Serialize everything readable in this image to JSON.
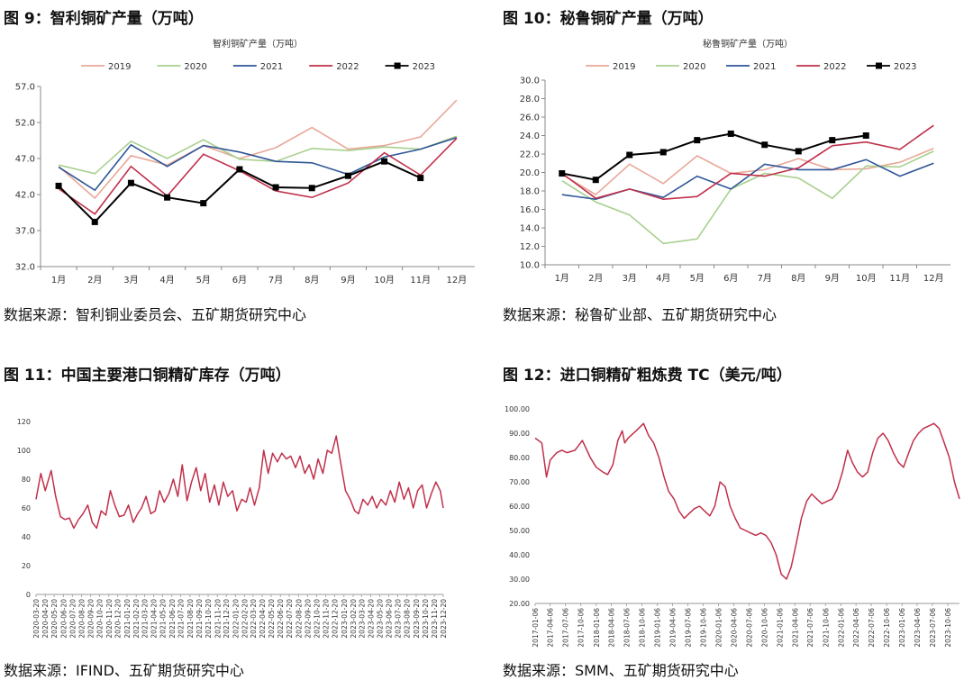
{
  "charts": [
    {
      "panel_title": "图 9：智利铜矿产量（万吨）",
      "source": "数据来源：智利铜业委员会、五矿期货研究中心",
      "chart_data": {
        "type": "line",
        "title": "智利铜矿产量（万吨）",
        "categories": [
          "1月",
          "2月",
          "3月",
          "4月",
          "5月",
          "6月",
          "7月",
          "8月",
          "9月",
          "10月",
          "11月",
          "12月"
        ],
        "ylim": [
          32,
          57
        ],
        "yticks": [
          "57.0",
          "52.0",
          "47.0",
          "42.0",
          "37.0",
          "32.0"
        ],
        "legend_position": "top",
        "series": [
          {
            "name": "2019",
            "color": "#e8a898",
            "values": [
              45.9,
              41.5,
              47.4,
              46.1,
              48.8,
              47.0,
              48.5,
              51.3,
              48.3,
              48.8,
              50.0,
              55.1
            ]
          },
          {
            "name": "2020",
            "color": "#a8d08d",
            "values": [
              46.1,
              44.9,
              49.4,
              47.0,
              49.6,
              46.9,
              46.6,
              48.4,
              48.1,
              48.6,
              48.3,
              50.1
            ]
          },
          {
            "name": "2021",
            "color": "#2f5597",
            "values": [
              45.8,
              42.6,
              48.9,
              45.9,
              48.8,
              47.9,
              46.6,
              46.4,
              44.8,
              47.2,
              48.3,
              49.9
            ]
          },
          {
            "name": "2022",
            "color": "#c0304a",
            "values": [
              42.8,
              39.3,
              45.9,
              41.8,
              47.6,
              45.3,
              42.5,
              41.6,
              43.6,
              47.8,
              44.7,
              49.8
            ]
          },
          {
            "name": "2023",
            "color": "#000000",
            "marker": true,
            "values": [
              43.2,
              38.2,
              43.6,
              41.6,
              40.8,
              45.5,
              43.0,
              42.9,
              44.6,
              46.6,
              44.3,
              null
            ]
          }
        ]
      }
    },
    {
      "panel_title": "图 10：秘鲁铜矿产量（万吨）",
      "source": "数据来源：秘鲁矿业部、五矿期货研究中心",
      "chart_data": {
        "type": "line",
        "title": "秘鲁铜矿产量（万吨）",
        "categories": [
          "1月",
          "2月",
          "3月",
          "4月",
          "5月",
          "6月",
          "7月",
          "8月",
          "9月",
          "10月",
          "11月",
          "12月"
        ],
        "ylim": [
          10,
          30
        ],
        "yticks": [
          "30.0",
          "28.0",
          "26.0",
          "24.0",
          "22.0",
          "20.0",
          "18.0",
          "16.0",
          "14.0",
          "12.0",
          "10.0"
        ],
        "legend_position": "top",
        "series": [
          {
            "name": "2019",
            "color": "#e8a898",
            "values": [
              19.8,
              17.6,
              20.9,
              18.8,
              21.8,
              19.9,
              20.3,
              21.5,
              20.3,
              20.4,
              21.1,
              22.6
            ]
          },
          {
            "name": "2020",
            "color": "#a8d08d",
            "values": [
              19.1,
              16.8,
              15.4,
              12.3,
              12.8,
              18.2,
              19.9,
              19.4,
              17.2,
              20.7,
              20.6,
              22.3
            ]
          },
          {
            "name": "2021",
            "color": "#2f5597",
            "values": [
              17.6,
              17.1,
              18.2,
              17.3,
              19.6,
              18.2,
              20.9,
              20.3,
              20.3,
              21.4,
              19.6,
              21.0
            ]
          },
          {
            "name": "2022",
            "color": "#c0304a",
            "values": [
              19.9,
              17.2,
              18.2,
              17.1,
              17.4,
              19.9,
              19.6,
              20.5,
              22.9,
              23.3,
              22.5,
              25.1
            ]
          },
          {
            "name": "2023",
            "color": "#000000",
            "marker": true,
            "values": [
              19.9,
              19.2,
              21.9,
              22.2,
              23.5,
              24.2,
              23.0,
              22.3,
              23.5,
              24.0,
              null,
              null
            ]
          }
        ]
      }
    },
    {
      "panel_title": "图 11：中国主要港口铜精矿库存（万吨）",
      "source": "数据来源：IFIND、五矿期货研究中心",
      "chart_data": {
        "type": "line",
        "ylim": [
          0,
          120
        ],
        "yticks": [
          "120",
          "100",
          "80",
          "60",
          "40",
          "20",
          "0"
        ],
        "color": "#c0304a",
        "xticks": [
          "2020-03-20",
          "2020-04-20",
          "2020-05-20",
          "2020-06-20",
          "2020-07-20",
          "2020-08-20",
          "2020-09-20",
          "2020-10-20",
          "2020-11-20",
          "2020-12-20",
          "2021-01-20",
          "2021-02-20",
          "2021-03-20",
          "2021-04-20",
          "2021-05-20",
          "2021-06-20",
          "2021-07-20",
          "2021-08-20",
          "2021-09-20",
          "2021-10-20",
          "2021-11-20",
          "2021-12-20",
          "2022-01-20",
          "2022-02-20",
          "2022-03-20",
          "2022-04-20",
          "2022-05-20",
          "2022-06-20",
          "2022-07-20",
          "2022-08-20",
          "2022-09-20",
          "2022-10-20",
          "2022-11-20",
          "2022-12-20",
          "2023-01-20",
          "2023-02-20",
          "2023-03-20",
          "2023-04-20",
          "2023-05-20",
          "2023-06-20",
          "2023-07-20",
          "2023-08-20",
          "2023-09-20",
          "2023-10-20",
          "2023-11-20",
          "2023-12-20"
        ],
        "x": [
          "2020-03-20",
          "2020-04-05",
          "2020-04-20",
          "2020-05-10",
          "2020-05-25",
          "2020-06-10",
          "2020-06-25",
          "2020-07-10",
          "2020-07-25",
          "2020-08-10",
          "2020-08-25",
          "2020-09-10",
          "2020-09-25",
          "2020-10-10",
          "2020-10-25",
          "2020-11-10",
          "2020-11-25",
          "2020-12-10",
          "2020-12-25",
          "2021-01-10",
          "2021-01-25",
          "2021-02-10",
          "2021-02-25",
          "2021-03-10",
          "2021-03-25",
          "2021-04-10",
          "2021-04-25",
          "2021-05-10",
          "2021-05-25",
          "2021-06-10",
          "2021-06-25",
          "2021-07-10",
          "2021-07-25",
          "2021-08-10",
          "2021-08-25",
          "2021-09-10",
          "2021-09-25",
          "2021-10-10",
          "2021-10-25",
          "2021-11-10",
          "2021-11-25",
          "2021-12-10",
          "2021-12-25",
          "2022-01-10",
          "2022-01-25",
          "2022-02-10",
          "2022-02-25",
          "2022-03-10",
          "2022-03-25",
          "2022-04-10",
          "2022-04-25",
          "2022-05-10",
          "2022-05-25",
          "2022-06-10",
          "2022-06-25",
          "2022-07-10",
          "2022-07-25",
          "2022-08-10",
          "2022-08-25",
          "2022-09-10",
          "2022-09-25",
          "2022-10-10",
          "2022-10-25",
          "2022-11-10",
          "2022-11-25",
          "2022-12-10",
          "2022-12-25",
          "2023-01-10",
          "2023-01-25",
          "2023-02-10",
          "2023-02-25",
          "2023-03-10",
          "2023-03-25",
          "2023-04-10",
          "2023-04-25",
          "2023-05-10",
          "2023-05-25",
          "2023-06-10",
          "2023-06-25",
          "2023-07-10",
          "2023-07-25",
          "2023-08-10",
          "2023-08-25",
          "2023-09-10",
          "2023-09-25",
          "2023-10-10",
          "2023-10-25",
          "2023-11-10",
          "2023-11-25",
          "2023-12-10",
          "2023-12-20"
        ],
        "values": [
          66,
          84,
          72,
          86,
          68,
          54,
          52,
          53,
          46,
          52,
          56,
          62,
          50,
          46,
          58,
          55,
          72,
          62,
          54,
          55,
          62,
          50,
          56,
          60,
          68,
          56,
          58,
          72,
          64,
          70,
          80,
          68,
          90,
          65,
          78,
          88,
          72,
          84,
          64,
          76,
          62,
          78,
          68,
          72,
          58,
          66,
          64,
          74,
          62,
          74,
          100,
          84,
          98,
          92,
          98,
          94,
          96,
          88,
          96,
          84,
          90,
          80,
          94,
          84,
          100,
          98,
          110,
          90,
          72,
          66,
          58,
          56,
          66,
          62,
          68,
          60,
          66,
          62,
          72,
          64,
          78,
          66,
          74,
          60,
          72,
          76,
          60,
          70,
          78,
          72,
          60
        ]
      }
    },
    {
      "panel_title": "图 12：进口铜精矿粗炼费 TC（美元/吨）",
      "source": "数据来源：SMM、五矿期货研究中心",
      "chart_data": {
        "type": "line",
        "ylim": [
          20,
          100
        ],
        "yticks": [
          "100.00",
          "90.00",
          "80.00",
          "70.00",
          "60.00",
          "50.00",
          "40.00",
          "30.00",
          "20.00"
        ],
        "color": "#c0304a",
        "xticks": [
          "2017-01-06",
          "2017-04-06",
          "2017-07-06",
          "2017-10-06",
          "2018-01-06",
          "2018-04-06",
          "2018-07-06",
          "2018-10-06",
          "2019-01-06",
          "2019-04-06",
          "2019-07-06",
          "2019-10-06",
          "2020-01-06",
          "2020-04-06",
          "2020-07-06",
          "2020-10-06",
          "2021-01-06",
          "2021-04-06",
          "2021-07-06",
          "2021-10-06",
          "2022-01-06",
          "2022-04-06",
          "2022-07-06",
          "2022-10-06",
          "2023-01-06",
          "2023-04-06",
          "2023-07-06",
          "2023-10-06"
        ],
        "x": [
          "2017-01-06",
          "2017-02-15",
          "2017-03-15",
          "2017-04-06",
          "2017-05-15",
          "2017-06-15",
          "2017-07-15",
          "2017-09-01",
          "2017-10-15",
          "2017-12-01",
          "2018-01-06",
          "2018-02-15",
          "2018-03-15",
          "2018-04-15",
          "2018-05-15",
          "2018-06-10",
          "2018-06-25",
          "2018-07-15",
          "2018-09-01",
          "2018-10-15",
          "2018-11-15",
          "2018-12-15",
          "2019-01-15",
          "2019-02-15",
          "2019-03-15",
          "2019-04-15",
          "2019-05-15",
          "2019-06-15",
          "2019-07-15",
          "2019-08-15",
          "2019-09-15",
          "2019-10-15",
          "2019-11-15",
          "2019-12-15",
          "2020-01-15",
          "2020-02-15",
          "2020-03-15",
          "2020-04-15",
          "2020-05-15",
          "2020-06-15",
          "2020-07-15",
          "2020-08-15",
          "2020-09-15",
          "2020-10-15",
          "2020-11-15",
          "2020-12-15",
          "2021-01-15",
          "2021-02-15",
          "2021-03-15",
          "2021-04-15",
          "2021-05-15",
          "2021-06-15",
          "2021-07-15",
          "2021-08-15",
          "2021-09-15",
          "2021-10-15",
          "2021-11-15",
          "2021-12-15",
          "2022-01-15",
          "2022-02-15",
          "2022-03-15",
          "2022-04-15",
          "2022-05-15",
          "2022-06-15",
          "2022-07-15",
          "2022-08-15",
          "2022-09-15",
          "2022-10-15",
          "2022-11-15",
          "2022-12-15",
          "2023-01-15",
          "2023-02-15",
          "2023-03-15",
          "2023-04-15",
          "2023-05-15",
          "2023-06-15",
          "2023-07-15",
          "2023-08-15",
          "2023-09-15",
          "2023-10-15",
          "2023-11-15",
          "2023-12-15"
        ],
        "values": [
          88,
          86,
          72,
          79,
          82,
          83,
          82,
          83,
          87,
          80,
          76,
          74,
          73,
          77,
          87,
          91,
          86,
          88,
          91,
          94,
          89,
          86,
          80,
          72,
          66,
          63,
          58,
          55,
          57,
          59,
          60,
          58,
          56,
          60,
          70,
          68,
          60,
          55,
          51,
          50,
          49,
          48,
          49,
          48,
          45,
          40,
          32,
          30,
          35,
          45,
          55,
          62,
          65,
          63,
          61,
          62,
          63,
          67,
          74,
          83,
          78,
          74,
          72,
          74,
          82,
          88,
          90,
          87,
          82,
          78,
          76,
          82,
          87,
          90,
          92,
          93,
          94,
          92,
          86,
          80,
          70,
          63
        ]
      }
    }
  ]
}
